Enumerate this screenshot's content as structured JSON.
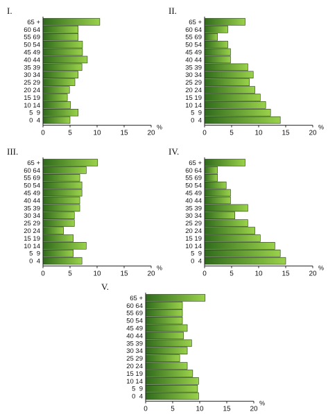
{
  "colors": {
    "bar_light": "#9ad24a",
    "bar_dark": "#2f6a1c",
    "axis": "#222222",
    "text": "#111111"
  },
  "chart_data": [
    {
      "type": "bar",
      "orientation": "horizontal",
      "title": "I.",
      "categories": [
        "65 +",
        "60 64",
        "55 69",
        "50 54",
        "45 49",
        "40 44",
        "35 39",
        "30 34",
        "25 29",
        "20 24",
        "15 19",
        "10 14",
        "5  9",
        "0  4"
      ],
      "values": [
        10.5,
        6.5,
        6.5,
        7.3,
        7.3,
        8.2,
        7.2,
        6.5,
        5.9,
        4.9,
        4.5,
        5.1,
        6.5,
        5.0
      ],
      "x_ticks": [
        "0",
        "5",
        "10",
        "15",
        "20"
      ],
      "unit": "%",
      "xlim": [
        0,
        20
      ]
    },
    {
      "type": "bar",
      "orientation": "horizontal",
      "title": "II.",
      "categories": [
        "65 +",
        "60 64",
        "55 69",
        "50 54",
        "45 49",
        "40 44",
        "35 39",
        "30 34",
        "25 29",
        "20 24",
        "15 19",
        "10 14",
        "5  9",
        "0  4"
      ],
      "values": [
        7.5,
        4.3,
        2.4,
        4.3,
        4.8,
        4.8,
        8.0,
        9.0,
        8.3,
        9.3,
        10.3,
        11.3,
        12.2,
        14.0
      ],
      "x_ticks": [
        "0",
        "5",
        "10",
        "15",
        "20"
      ],
      "unit": "%",
      "xlim": [
        0,
        20
      ]
    },
    {
      "type": "bar",
      "orientation": "horizontal",
      "title": "III.",
      "categories": [
        "65 +",
        "60 64",
        "55 69",
        "50 54",
        "45 49",
        "40 44",
        "35 39",
        "30 34",
        "25 29",
        "20 24",
        "15 19",
        "10 14",
        "5  9",
        "0  4"
      ],
      "values": [
        10.1,
        8.0,
        6.8,
        7.2,
        7.2,
        6.8,
        6.8,
        5.8,
        5.8,
        3.8,
        5.6,
        8.0,
        5.6,
        7.2
      ],
      "x_ticks": [
        "0",
        "5",
        "10",
        "15",
        "20"
      ],
      "unit": "%",
      "xlim": [
        0,
        20
      ]
    },
    {
      "type": "bar",
      "orientation": "horizontal",
      "title": "IV.",
      "categories": [
        "65 +",
        "60 64",
        "55 69",
        "50 54",
        "45 49",
        "40 44",
        "35 39",
        "30 34",
        "25 29",
        "20 24",
        "15 19",
        "10 14",
        "5  9",
        "0  4"
      ],
      "values": [
        7.5,
        2.4,
        2.4,
        4.0,
        4.8,
        4.8,
        8.0,
        5.6,
        8.0,
        9.3,
        10.3,
        13.0,
        14.0,
        15.0
      ],
      "x_ticks": [
        "0",
        "5",
        "10",
        "15",
        "20"
      ],
      "unit": "%",
      "xlim": [
        0,
        20
      ]
    },
    {
      "type": "bar",
      "orientation": "horizontal",
      "title": "V.",
      "categories": [
        "65 +",
        "60 64",
        "55 69",
        "50 54",
        "45 49",
        "40 44",
        "35 39",
        "30 34",
        "25 29",
        "20 24",
        "15 19",
        "10 14",
        "5  9",
        "0  4"
      ],
      "values": [
        11.0,
        6.8,
        6.8,
        6.8,
        7.7,
        7.0,
        8.5,
        7.7,
        6.3,
        7.7,
        8.7,
        9.8,
        9.6,
        9.8
      ],
      "x_ticks": [
        "0",
        "5",
        "10",
        "15",
        "20"
      ],
      "unit": "%",
      "xlim": [
        0,
        20
      ]
    }
  ]
}
